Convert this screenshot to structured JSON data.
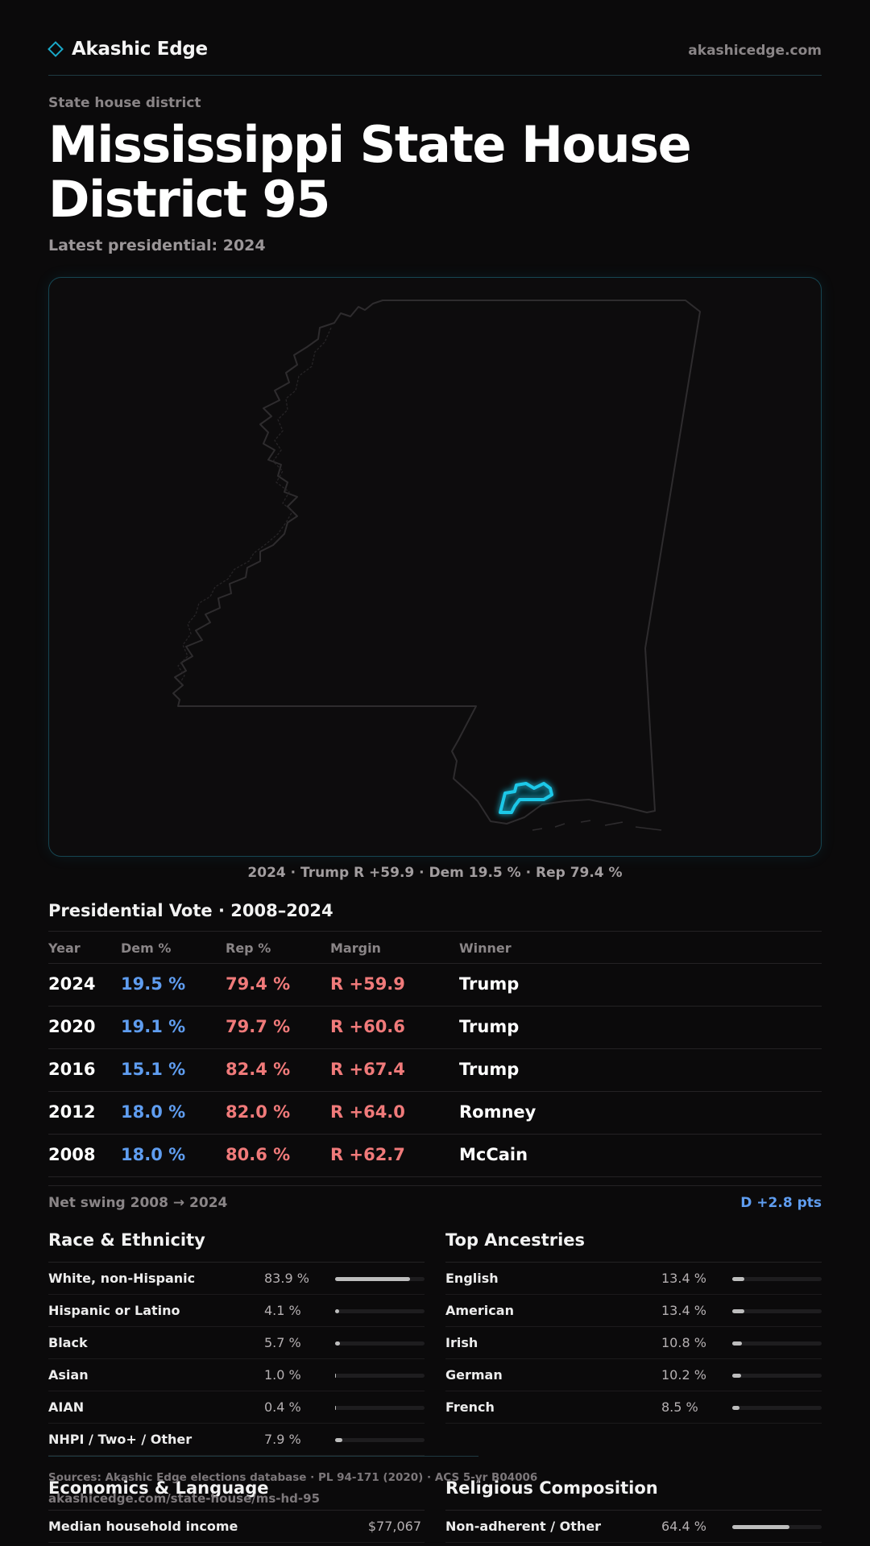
{
  "header": {
    "brand_name": "Akashic Edge",
    "site_url": "akashicedge.com"
  },
  "page": {
    "eyebrow": "State house district",
    "title": "Mississippi State House District 95",
    "subtitle": "Latest presidential: 2024"
  },
  "map": {
    "caption": "2024 · Trump R +59.9 · Dem 19.5 % · Rep 79.4 %",
    "state_outline_color": "#2e2c2e",
    "district_highlight_color": "#1ec8e8"
  },
  "presidential": {
    "title": "Presidential Vote · 2008–2024",
    "columns": [
      "Year",
      "Dem %",
      "Rep %",
      "Margin",
      "Winner"
    ],
    "rows": [
      {
        "year": "2024",
        "dem": "19.5 %",
        "rep": "79.4 %",
        "margin": "R +59.9",
        "winner": "Trump"
      },
      {
        "year": "2020",
        "dem": "19.1 %",
        "rep": "79.7 %",
        "margin": "R +60.6",
        "winner": "Trump"
      },
      {
        "year": "2016",
        "dem": "15.1 %",
        "rep": "82.4 %",
        "margin": "R +67.4",
        "winner": "Trump"
      },
      {
        "year": "2012",
        "dem": "18.0 %",
        "rep": "82.0 %",
        "margin": "R +64.0",
        "winner": "Romney"
      },
      {
        "year": "2008",
        "dem": "18.0 %",
        "rep": "80.6 %",
        "margin": "R +62.7",
        "winner": "McCain"
      }
    ],
    "swing_label": "Net swing 2008 → 2024",
    "swing_value": "D +2.8 pts",
    "dem_color": "#5f9df0",
    "rep_color": "#f07a7a"
  },
  "race": {
    "title": "Race & Ethnicity",
    "rows": [
      {
        "label": "White, non-Hispanic",
        "value": "83.9 %",
        "pct": 83.9
      },
      {
        "label": "Hispanic or Latino",
        "value": "4.1 %",
        "pct": 4.1
      },
      {
        "label": "Black",
        "value": "5.7 %",
        "pct": 5.7
      },
      {
        "label": "Asian",
        "value": "1.0 %",
        "pct": 1.0
      },
      {
        "label": "AIAN",
        "value": "0.4 %",
        "pct": 0.4
      },
      {
        "label": "NHPI / Two+ / Other",
        "value": "7.9 %",
        "pct": 7.9
      }
    ]
  },
  "ancestry": {
    "title": "Top Ancestries",
    "rows": [
      {
        "label": "English",
        "value": "13.4 %",
        "pct": 13.4
      },
      {
        "label": "American",
        "value": "13.4 %",
        "pct": 13.4
      },
      {
        "label": "Irish",
        "value": "10.8 %",
        "pct": 10.8
      },
      {
        "label": "German",
        "value": "10.2 %",
        "pct": 10.2
      },
      {
        "label": "French",
        "value": "8.5 %",
        "pct": 8.5
      }
    ]
  },
  "economics": {
    "title": "Economics & Language",
    "rows": [
      {
        "label": "Median household income",
        "value": "$77,067"
      }
    ]
  },
  "religion": {
    "title": "Religious Composition",
    "rows": [
      {
        "label": "Non-adherent / Other",
        "value": "64.4 %",
        "pct": 64.4
      }
    ]
  },
  "footer": {
    "sources": "Sources: Akashic Edge elections database · PL 94-171 (2020) · ACS 5-yr B04006",
    "url": "akashicedge.com/state-house/ms-hd-95"
  }
}
